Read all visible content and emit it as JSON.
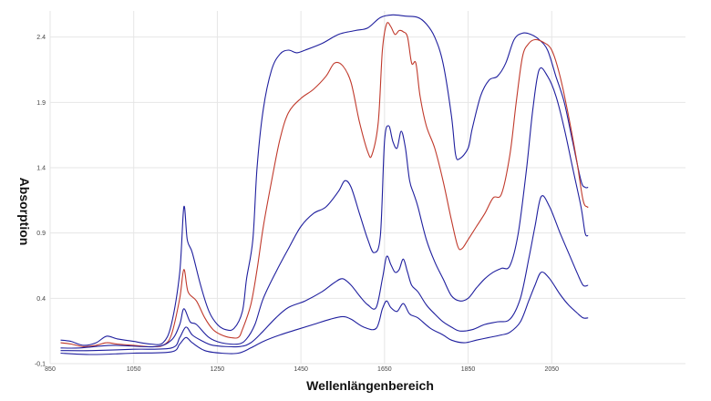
{
  "chart_data": {
    "type": "line",
    "title": "",
    "xlabel": "Wellenlängenbereich",
    "ylabel": "Absorption",
    "xlim": [
      850,
      2370
    ],
    "ylim": [
      -0.1,
      2.6
    ],
    "xticks": [
      850,
      1050,
      1250,
      1450,
      1650,
      1850,
      2050
    ],
    "xtick_labels": [
      "850",
      "1050",
      "1250",
      "1450",
      "1650",
      "1850",
      "2050"
    ],
    "yticks": [
      -0.1,
      0.4,
      0.9,
      1.4,
      1.9,
      2.4
    ],
    "ytick_labels": [
      "-0,1",
      "0.4",
      "0.9",
      "1.4",
      "1.9",
      "2.4"
    ],
    "grid": true,
    "legend": "none",
    "series": [
      {
        "color": "#1f1f9e",
        "points": [
          [
            875,
            0.08
          ],
          [
            900,
            0.07
          ],
          [
            930,
            0.04
          ],
          [
            960,
            0.06
          ],
          [
            985,
            0.11
          ],
          [
            1010,
            0.09
          ],
          [
            1050,
            0.07
          ],
          [
            1090,
            0.05
          ],
          [
            1120,
            0.06
          ],
          [
            1140,
            0.2
          ],
          [
            1160,
            0.6
          ],
          [
            1170,
            1.1
          ],
          [
            1178,
            0.85
          ],
          [
            1190,
            0.75
          ],
          [
            1210,
            0.5
          ],
          [
            1230,
            0.3
          ],
          [
            1250,
            0.2
          ],
          [
            1270,
            0.16
          ],
          [
            1290,
            0.17
          ],
          [
            1310,
            0.3
          ],
          [
            1320,
            0.55
          ],
          [
            1335,
            0.85
          ],
          [
            1345,
            1.4
          ],
          [
            1360,
            1.85
          ],
          [
            1380,
            2.15
          ],
          [
            1400,
            2.27
          ],
          [
            1420,
            2.3
          ],
          [
            1440,
            2.28
          ],
          [
            1460,
            2.3
          ],
          [
            1500,
            2.35
          ],
          [
            1540,
            2.42
          ],
          [
            1580,
            2.45
          ],
          [
            1610,
            2.47
          ],
          [
            1640,
            2.55
          ],
          [
            1670,
            2.57
          ],
          [
            1700,
            2.56
          ],
          [
            1730,
            2.55
          ],
          [
            1750,
            2.5
          ],
          [
            1770,
            2.4
          ],
          [
            1790,
            2.2
          ],
          [
            1810,
            1.8
          ],
          [
            1820,
            1.5
          ],
          [
            1830,
            1.47
          ],
          [
            1850,
            1.55
          ],
          [
            1860,
            1.7
          ],
          [
            1880,
            1.95
          ],
          [
            1900,
            2.07
          ],
          [
            1920,
            2.1
          ],
          [
            1940,
            2.2
          ],
          [
            1960,
            2.38
          ],
          [
            1980,
            2.43
          ],
          [
            2000,
            2.42
          ],
          [
            2020,
            2.38
          ],
          [
            2040,
            2.3
          ],
          [
            2060,
            2.1
          ],
          [
            2080,
            1.9
          ],
          [
            2100,
            1.6
          ],
          [
            2120,
            1.3
          ],
          [
            2130,
            1.25
          ],
          [
            2137,
            1.25
          ]
        ]
      },
      {
        "color": "#c0392b",
        "points": [
          [
            875,
            0.06
          ],
          [
            900,
            0.05
          ],
          [
            930,
            0.03
          ],
          [
            960,
            0.04
          ],
          [
            985,
            0.06
          ],
          [
            1010,
            0.05
          ],
          [
            1050,
            0.04
          ],
          [
            1090,
            0.03
          ],
          [
            1120,
            0.04
          ],
          [
            1140,
            0.12
          ],
          [
            1160,
            0.4
          ],
          [
            1170,
            0.62
          ],
          [
            1180,
            0.45
          ],
          [
            1200,
            0.38
          ],
          [
            1220,
            0.25
          ],
          [
            1240,
            0.16
          ],
          [
            1260,
            0.12
          ],
          [
            1280,
            0.1
          ],
          [
            1300,
            0.1
          ],
          [
            1310,
            0.16
          ],
          [
            1330,
            0.35
          ],
          [
            1345,
            0.62
          ],
          [
            1360,
            0.95
          ],
          [
            1380,
            1.3
          ],
          [
            1400,
            1.62
          ],
          [
            1420,
            1.82
          ],
          [
            1450,
            1.93
          ],
          [
            1480,
            2.0
          ],
          [
            1510,
            2.1
          ],
          [
            1530,
            2.2
          ],
          [
            1550,
            2.18
          ],
          [
            1570,
            2.05
          ],
          [
            1590,
            1.75
          ],
          [
            1610,
            1.52
          ],
          [
            1620,
            1.5
          ],
          [
            1635,
            1.75
          ],
          [
            1645,
            2.3
          ],
          [
            1655,
            2.5
          ],
          [
            1665,
            2.48
          ],
          [
            1675,
            2.42
          ],
          [
            1685,
            2.45
          ],
          [
            1695,
            2.44
          ],
          [
            1705,
            2.4
          ],
          [
            1715,
            2.2
          ],
          [
            1725,
            2.2
          ],
          [
            1735,
            1.95
          ],
          [
            1750,
            1.72
          ],
          [
            1770,
            1.55
          ],
          [
            1790,
            1.3
          ],
          [
            1810,
            1.0
          ],
          [
            1825,
            0.8
          ],
          [
            1835,
            0.78
          ],
          [
            1850,
            0.85
          ],
          [
            1870,
            0.95
          ],
          [
            1890,
            1.05
          ],
          [
            1910,
            1.17
          ],
          [
            1930,
            1.2
          ],
          [
            1950,
            1.5
          ],
          [
            1965,
            1.9
          ],
          [
            1980,
            2.25
          ],
          [
            1995,
            2.35
          ],
          [
            2010,
            2.38
          ],
          [
            2030,
            2.36
          ],
          [
            2050,
            2.3
          ],
          [
            2070,
            2.1
          ],
          [
            2090,
            1.8
          ],
          [
            2110,
            1.45
          ],
          [
            2125,
            1.15
          ],
          [
            2135,
            1.1
          ],
          [
            2137,
            1.1
          ]
        ]
      },
      {
        "color": "#1f1f9e",
        "points": [
          [
            875,
            0.02
          ],
          [
            920,
            0.02
          ],
          [
            1000,
            0.04
          ],
          [
            1100,
            0.03
          ],
          [
            1140,
            0.08
          ],
          [
            1160,
            0.2
          ],
          [
            1170,
            0.32
          ],
          [
            1185,
            0.22
          ],
          [
            1200,
            0.2
          ],
          [
            1230,
            0.1
          ],
          [
            1260,
            0.06
          ],
          [
            1300,
            0.05
          ],
          [
            1320,
            0.09
          ],
          [
            1340,
            0.2
          ],
          [
            1360,
            0.4
          ],
          [
            1390,
            0.6
          ],
          [
            1420,
            0.78
          ],
          [
            1450,
            0.95
          ],
          [
            1480,
            1.05
          ],
          [
            1510,
            1.1
          ],
          [
            1540,
            1.22
          ],
          [
            1555,
            1.3
          ],
          [
            1570,
            1.25
          ],
          [
            1590,
            1.05
          ],
          [
            1610,
            0.85
          ],
          [
            1625,
            0.75
          ],
          [
            1640,
            0.88
          ],
          [
            1650,
            1.6
          ],
          [
            1660,
            1.72
          ],
          [
            1670,
            1.6
          ],
          [
            1680,
            1.55
          ],
          [
            1690,
            1.68
          ],
          [
            1700,
            1.55
          ],
          [
            1710,
            1.3
          ],
          [
            1720,
            1.2
          ],
          [
            1730,
            1.1
          ],
          [
            1750,
            0.85
          ],
          [
            1770,
            0.68
          ],
          [
            1790,
            0.55
          ],
          [
            1810,
            0.42
          ],
          [
            1830,
            0.38
          ],
          [
            1850,
            0.4
          ],
          [
            1870,
            0.48
          ],
          [
            1890,
            0.55
          ],
          [
            1910,
            0.6
          ],
          [
            1930,
            0.63
          ],
          [
            1950,
            0.65
          ],
          [
            1970,
            0.9
          ],
          [
            1990,
            1.4
          ],
          [
            2005,
            1.85
          ],
          [
            2020,
            2.15
          ],
          [
            2040,
            2.1
          ],
          [
            2060,
            1.95
          ],
          [
            2080,
            1.7
          ],
          [
            2100,
            1.4
          ],
          [
            2120,
            1.1
          ],
          [
            2130,
            0.9
          ],
          [
            2137,
            0.88
          ]
        ]
      },
      {
        "color": "#1f1f9e",
        "points": [
          [
            875,
            0.0
          ],
          [
            950,
            0.0
          ],
          [
            1050,
            0.01
          ],
          [
            1140,
            0.02
          ],
          [
            1160,
            0.1
          ],
          [
            1175,
            0.18
          ],
          [
            1190,
            0.12
          ],
          [
            1210,
            0.08
          ],
          [
            1240,
            0.04
          ],
          [
            1300,
            0.03
          ],
          [
            1330,
            0.06
          ],
          [
            1360,
            0.15
          ],
          [
            1390,
            0.25
          ],
          [
            1420,
            0.33
          ],
          [
            1460,
            0.38
          ],
          [
            1500,
            0.45
          ],
          [
            1530,
            0.52
          ],
          [
            1550,
            0.55
          ],
          [
            1570,
            0.5
          ],
          [
            1590,
            0.42
          ],
          [
            1610,
            0.35
          ],
          [
            1630,
            0.33
          ],
          [
            1645,
            0.55
          ],
          [
            1655,
            0.72
          ],
          [
            1665,
            0.66
          ],
          [
            1675,
            0.6
          ],
          [
            1685,
            0.62
          ],
          [
            1695,
            0.7
          ],
          [
            1705,
            0.6
          ],
          [
            1715,
            0.5
          ],
          [
            1730,
            0.45
          ],
          [
            1750,
            0.35
          ],
          [
            1770,
            0.28
          ],
          [
            1790,
            0.22
          ],
          [
            1810,
            0.18
          ],
          [
            1830,
            0.15
          ],
          [
            1860,
            0.16
          ],
          [
            1890,
            0.2
          ],
          [
            1920,
            0.22
          ],
          [
            1950,
            0.24
          ],
          [
            1975,
            0.4
          ],
          [
            1995,
            0.7
          ],
          [
            2010,
            0.95
          ],
          [
            2025,
            1.18
          ],
          [
            2045,
            1.1
          ],
          [
            2070,
            0.9
          ],
          [
            2090,
            0.75
          ],
          [
            2110,
            0.6
          ],
          [
            2125,
            0.5
          ],
          [
            2137,
            0.5
          ]
        ]
      },
      {
        "color": "#1f1f9e",
        "points": [
          [
            875,
            -0.02
          ],
          [
            950,
            -0.03
          ],
          [
            1050,
            -0.02
          ],
          [
            1140,
            -0.01
          ],
          [
            1160,
            0.05
          ],
          [
            1175,
            0.1
          ],
          [
            1190,
            0.06
          ],
          [
            1220,
            0.0
          ],
          [
            1260,
            -0.02
          ],
          [
            1300,
            -0.02
          ],
          [
            1330,
            0.02
          ],
          [
            1360,
            0.07
          ],
          [
            1400,
            0.12
          ],
          [
            1440,
            0.16
          ],
          [
            1480,
            0.2
          ],
          [
            1520,
            0.24
          ],
          [
            1550,
            0.26
          ],
          [
            1570,
            0.24
          ],
          [
            1600,
            0.18
          ],
          [
            1630,
            0.17
          ],
          [
            1645,
            0.32
          ],
          [
            1655,
            0.38
          ],
          [
            1665,
            0.33
          ],
          [
            1680,
            0.3
          ],
          [
            1695,
            0.36
          ],
          [
            1710,
            0.28
          ],
          [
            1730,
            0.25
          ],
          [
            1760,
            0.17
          ],
          [
            1790,
            0.12
          ],
          [
            1810,
            0.08
          ],
          [
            1840,
            0.06
          ],
          [
            1870,
            0.08
          ],
          [
            1900,
            0.1
          ],
          [
            1930,
            0.12
          ],
          [
            1950,
            0.14
          ],
          [
            1975,
            0.22
          ],
          [
            1995,
            0.38
          ],
          [
            2010,
            0.5
          ],
          [
            2025,
            0.6
          ],
          [
            2045,
            0.55
          ],
          [
            2070,
            0.43
          ],
          [
            2090,
            0.35
          ],
          [
            2110,
            0.29
          ],
          [
            2125,
            0.25
          ],
          [
            2137,
            0.25
          ]
        ]
      }
    ]
  }
}
